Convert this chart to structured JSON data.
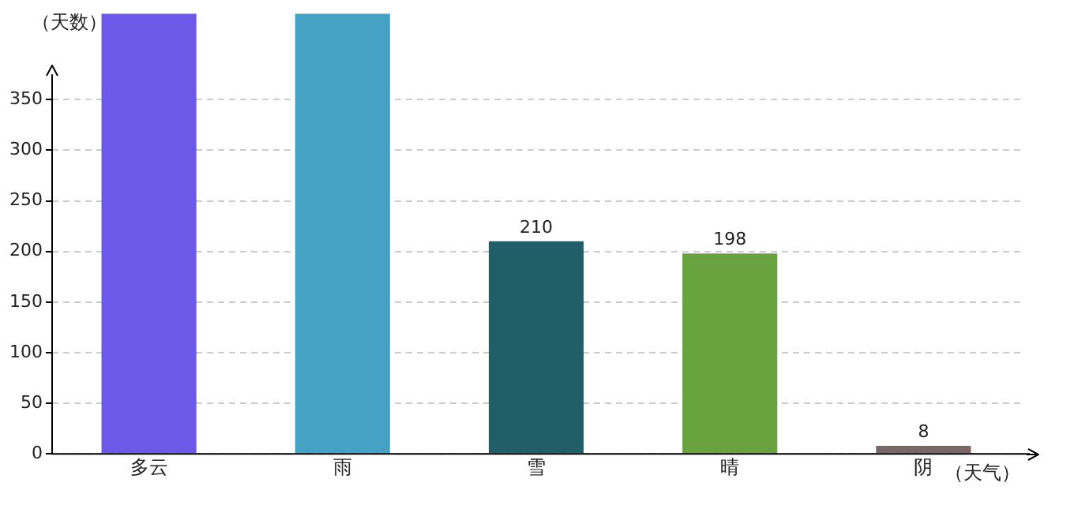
{
  "chart_data": {
    "type": "bar",
    "xlabel": "（天气）",
    "ylabel": "（天数）",
    "categories": [
      "多云",
      "雨",
      "雪",
      "晴",
      "阴"
    ],
    "values": [
      435,
      435,
      210,
      198,
      8
    ],
    "colors": [
      "#6c59e8",
      "#45a2c4",
      "#215f68",
      "#68a33f",
      "#7a6868"
    ],
    "value_labels": [
      null,
      null,
      "210",
      "198",
      "8"
    ],
    "ylim": [
      0,
      435
    ],
    "yticks": [
      0,
      50,
      100,
      150,
      200,
      250,
      300,
      350
    ],
    "grid": "y",
    "legend": false
  }
}
